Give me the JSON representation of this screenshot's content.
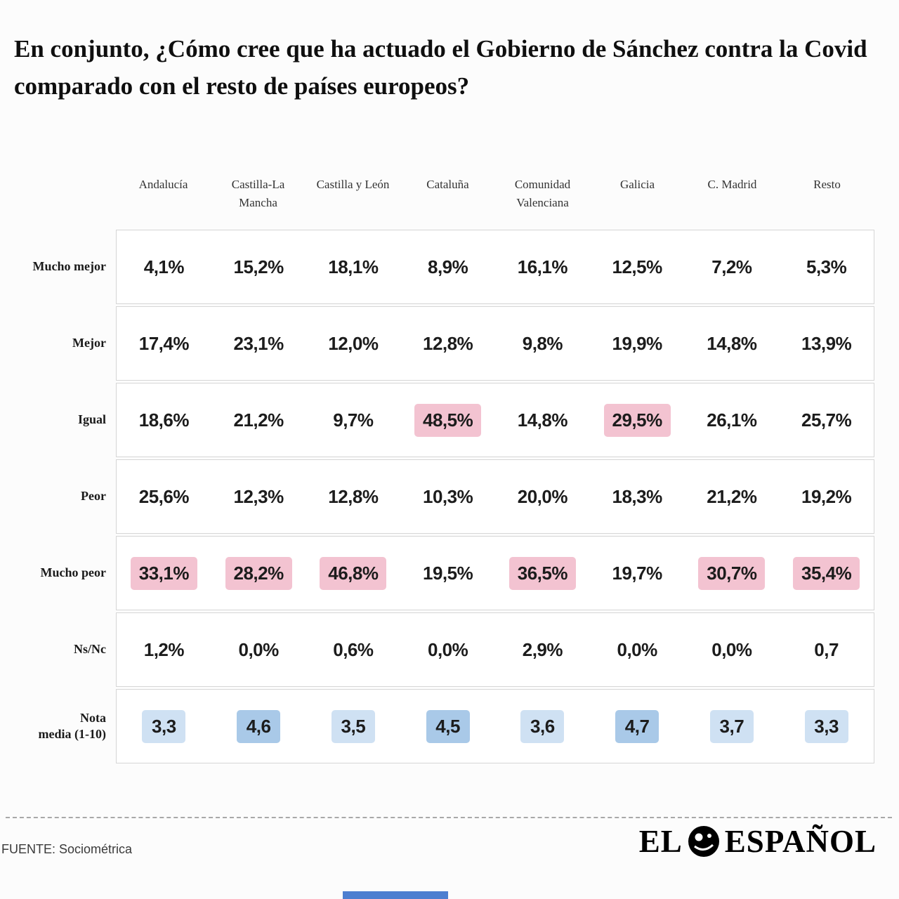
{
  "title": "En conjunto, ¿Cómo cree que ha actuado el Gobierno de Sánchez contra la Covid comparado con el resto de países europeos?",
  "footer": {
    "source": "FUENTE: Sociométrica",
    "brand_left": "EL",
    "brand_right": "ESPAÑOL"
  },
  "colors": {
    "highlight_pink": "#f3c3d1",
    "highlight_blue": "#cfe1f3",
    "highlight_blue_dark": "#a9c9e8",
    "accent_blue": "#4d7fd0"
  },
  "chart_data": {
    "type": "table",
    "title": "En conjunto, ¿Cómo cree que ha actuado el Gobierno de Sánchez contra la Covid comparado con el resto de países europeos?",
    "columns": [
      "Andalucía",
      "Castilla-La Mancha",
      "Castilla y León",
      "Cataluña",
      "Comunidad Valenciana",
      "Galicia",
      "C. Madrid",
      "Resto"
    ],
    "rows": [
      {
        "label": "Mucho mejor",
        "values": [
          "4,1%",
          "15,2%",
          "18,1%",
          "8,9%",
          "16,1%",
          "12,5%",
          "7,2%",
          "5,3%"
        ],
        "highlights": [
          null,
          null,
          null,
          null,
          null,
          null,
          null,
          null
        ]
      },
      {
        "label": "Mejor",
        "values": [
          "17,4%",
          "23,1%",
          "12,0%",
          "12,8%",
          "9,8%",
          "19,9%",
          "14,8%",
          "13,9%"
        ],
        "highlights": [
          null,
          null,
          null,
          null,
          null,
          null,
          null,
          null
        ]
      },
      {
        "label": "Igual",
        "values": [
          "18,6%",
          "21,2%",
          "9,7%",
          "48,5%",
          "14,8%",
          "29,5%",
          "26,1%",
          "25,7%"
        ],
        "highlights": [
          null,
          null,
          null,
          "pink",
          null,
          "pink",
          null,
          null
        ]
      },
      {
        "label": "Peor",
        "values": [
          "25,6%",
          "12,3%",
          "12,8%",
          "10,3%",
          "20,0%",
          "18,3%",
          "21,2%",
          "19,2%"
        ],
        "highlights": [
          null,
          null,
          null,
          null,
          null,
          null,
          null,
          null
        ]
      },
      {
        "label": "Mucho peor",
        "values": [
          "33,1%",
          "28,2%",
          "46,8%",
          "19,5%",
          "36,5%",
          "19,7%",
          "30,7%",
          "35,4%"
        ],
        "highlights": [
          "pink",
          "pink",
          "pink",
          null,
          "pink",
          null,
          "pink",
          "pink"
        ]
      },
      {
        "label": "Ns/Nc",
        "values": [
          "1,2%",
          "0,0%",
          "0,6%",
          "0,0%",
          "2,9%",
          "0,0%",
          "0,0%",
          "0,7"
        ],
        "highlights": [
          null,
          null,
          null,
          null,
          null,
          null,
          null,
          null
        ]
      },
      {
        "label": "Nota\nmedia (1-10)",
        "values": [
          "3,3",
          "4,6",
          "3,5",
          "4,5",
          "3,6",
          "4,7",
          "3,7",
          "3,3"
        ],
        "highlights": [
          "blue",
          "blue-dark",
          "blue",
          "blue-dark",
          "blue",
          "blue-dark",
          "blue",
          "blue"
        ]
      }
    ]
  }
}
